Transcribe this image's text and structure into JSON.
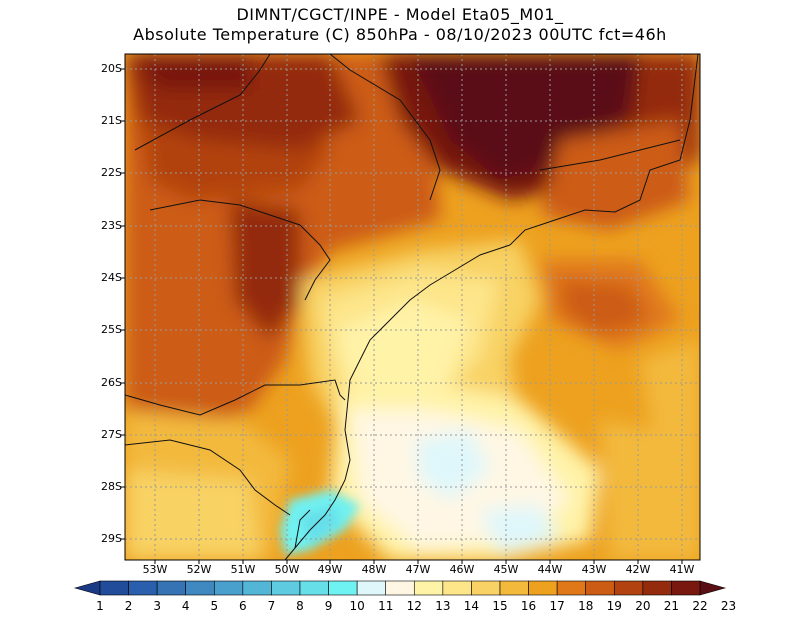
{
  "title_line1": "DIMNT/CGCT/INPE -  Model Eta05_M01_",
  "title_line2": "Absolute Temperature (C) 850hPa -  08/10/2023 00UTC fct=46h",
  "lat_labels": [
    "20S",
    "21S",
    "22S",
    "23S",
    "24S",
    "25S",
    "26S",
    "27S",
    "28S",
    "29S"
  ],
  "lon_labels": [
    "53W",
    "52W",
    "51W",
    "50W",
    "49W",
    "48W",
    "47W",
    "46W",
    "45W",
    "44W",
    "43W",
    "42W",
    "41W"
  ],
  "colorbar": {
    "labels": [
      "1",
      "2",
      "3",
      "4",
      "5",
      "6",
      "7",
      "8",
      "9",
      "10",
      "11",
      "12",
      "13",
      "14",
      "15",
      "16",
      "17",
      "18",
      "19",
      "20",
      "21",
      "22",
      "23"
    ],
    "colors": [
      "#1b3a85",
      "#204c9a",
      "#2a5fad",
      "#3573b5",
      "#3f88c0",
      "#49a0cc",
      "#54b6d6",
      "#5ecbe0",
      "#66dfe9",
      "#6ff2f2",
      "#dff7fb",
      "#fff7e4",
      "#fff3a8",
      "#fde58a",
      "#f8d264",
      "#f3b93c",
      "#eda11f",
      "#e0781a",
      "#cc5c14",
      "#b2420f",
      "#942b0d",
      "#78180f",
      "#5a0f14"
    ]
  },
  "colors": {
    "ocean_south": "#fff3a8",
    "ocean_east": "#f3b93c",
    "north_hot": "#5a0f14",
    "inland": "#cc5c14"
  }
}
